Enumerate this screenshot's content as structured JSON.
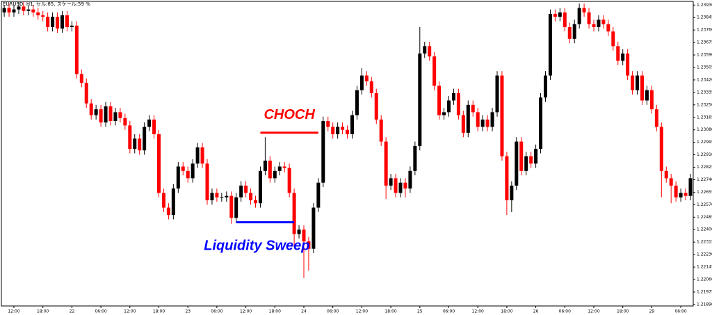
{
  "chart_data": {
    "type": "candlestick",
    "title": "EURUSD, H1, セル:85, スケール:59 %",
    "up_color": "#000000",
    "down_color": "#ff0000",
    "ylim": [
      1.2188,
      1.23955
    ],
    "yticks": [
      {
        "value": 1.2393,
        "label": "1.23930"
      },
      1.23845,
      {
        "value": 1.2376,
        "label": "1.23760"
      },
      1.23675,
      {
        "value": 1.2359,
        "label": "1.23590"
      },
      1.23505,
      {
        "value": 1.2342,
        "label": "1.23420"
      },
      1.23335,
      {
        "value": 1.2325,
        "label": "1.23250"
      },
      1.23165,
      {
        "value": 1.2308,
        "label": "1.23080"
      },
      1.22995,
      {
        "value": 1.2291,
        "label": "1.22910"
      },
      1.22825,
      {
        "value": 1.2274,
        "label": "1.22740"
      },
      1.22655,
      {
        "value": 1.2257,
        "label": "1.22570"
      },
      1.22485,
      {
        "value": 1.224,
        "label": "1.22400"
      },
      1.22315,
      {
        "value": 1.2223,
        "label": "1.22230"
      },
      1.22145,
      {
        "value": 1.2206,
        "label": "1.22060"
      },
      1.21975,
      {
        "value": 1.2189,
        "label": "1.21890"
      }
    ],
    "categories": [
      null,
      null,
      "12:00",
      null,
      null,
      null,
      null,
      null,
      "18:00",
      null,
      null,
      null,
      null,
      null,
      "22",
      null,
      null,
      null,
      null,
      null,
      "06:00",
      null,
      null,
      null,
      null,
      null,
      "12:00",
      null,
      null,
      null,
      null,
      null,
      "18:00",
      null,
      null,
      null,
      null,
      null,
      "23",
      null,
      null,
      null,
      null,
      null,
      "06:00",
      null,
      null,
      null,
      null,
      null,
      "12:00",
      null,
      null,
      null,
      null,
      null,
      "18:00",
      null,
      null,
      null,
      null,
      null,
      "24",
      null,
      null,
      null,
      null,
      null,
      "06:00",
      null,
      null,
      null,
      null,
      null,
      "12:00",
      null,
      null,
      null,
      null,
      null,
      "18:00",
      null,
      null,
      null,
      null,
      null,
      "25",
      null,
      null,
      null,
      null,
      null,
      "06:00",
      null,
      null,
      null,
      null,
      null,
      "12:00",
      null,
      null,
      null,
      null,
      null,
      "18:00",
      null,
      null,
      null,
      null,
      null,
      "26",
      null,
      null,
      null,
      null,
      null,
      "06:00",
      null,
      null,
      null,
      null,
      null,
      "12:00",
      null,
      null,
      null,
      null,
      null,
      "18:00",
      null,
      null,
      null,
      null,
      null,
      "29",
      null,
      null,
      null,
      null,
      null,
      "06:00",
      null,
      null
    ],
    "open": [
      1.2388,
      1.2391,
      1.2388,
      1.239,
      1.2392,
      1.2389,
      1.239,
      1.2388,
      1.2386,
      1.2385,
      1.2378,
      1.2385,
      1.2377,
      1.2386,
      1.2378,
      1.2379,
      1.2346,
      1.234,
      1.2326,
      1.2318,
      1.2322,
      1.2313,
      1.2324,
      1.2314,
      1.232,
      1.2316,
      1.2311,
      1.2295,
      1.2302,
      1.2294,
      1.231,
      1.2315,
      1.2305,
      1.2265,
      1.2255,
      1.225,
      1.2268,
      1.2283,
      1.228,
      1.2275,
      1.2285,
      1.2296,
      1.2285,
      1.226,
      1.2265,
      1.2262,
      1.2262,
      1.2263,
      1.2248,
      1.2262,
      1.227,
      1.2265,
      1.226,
      1.2258,
      1.228,
      1.2287,
      1.2275,
      1.228,
      1.2283,
      1.2282,
      1.2265,
      1.2237,
      1.224,
      1.2232,
      1.2227,
      1.2255,
      1.2272,
      1.2314,
      1.231,
      1.2305,
      1.231,
      1.2308,
      1.2305,
      1.2318,
      1.2335,
      1.2345,
      1.2341,
      1.2333,
      1.2315,
      1.23,
      1.227,
      1.2275,
      1.2265,
      1.2272,
      1.2268,
      1.228,
      1.2297,
      1.236,
      1.2365,
      1.2358,
      1.2338,
      1.2318,
      1.232,
      1.2328,
      1.2333,
      1.2318,
      1.2306,
      1.2325,
      1.232,
      1.231,
      1.2315,
      1.231,
      1.232,
      1.2345,
      1.229,
      1.226,
      1.227,
      1.23,
      1.228,
      1.229,
      1.2285,
      1.2295,
      1.233,
      1.2345,
      1.2387,
      1.2385,
      1.2388,
      1.2378,
      1.237,
      1.238,
      1.2391,
      1.2388,
      1.238,
      1.2378,
      1.2383,
      1.238,
      1.2375,
      1.2365,
      1.2355,
      1.236,
      1.2345,
      1.2335,
      1.2345,
      1.2328,
      1.2335,
      1.2322,
      1.231,
      1.228,
      1.2275,
      1.227,
      1.2262,
      1.2265,
      1.2263
    ],
    "high": [
      1.2393,
      1.2394,
      1.2393,
      1.2395,
      1.2395,
      1.2393,
      1.2393,
      1.2391,
      1.2389,
      1.2388,
      1.2388,
      1.2388,
      1.2389,
      1.2389,
      1.2382,
      1.2382,
      1.2349,
      1.2343,
      1.2329,
      1.2325,
      1.2325,
      1.2327,
      1.2327,
      1.2323,
      1.2323,
      1.2319,
      1.2314,
      1.2305,
      1.2305,
      1.2313,
      1.2318,
      1.2318,
      1.2308,
      1.2268,
      1.2258,
      1.2271,
      1.2286,
      1.2286,
      1.2283,
      1.2288,
      1.2299,
      1.2299,
      1.2288,
      1.2268,
      1.2268,
      1.2265,
      1.2266,
      1.2266,
      1.2265,
      1.2273,
      1.2273,
      1.2268,
      1.2263,
      1.2283,
      1.2303,
      1.229,
      1.2283,
      1.2286,
      1.2286,
      1.2285,
      1.2268,
      1.2243,
      1.2243,
      1.2235,
      1.2258,
      1.2275,
      1.2317,
      1.2317,
      1.2313,
      1.2313,
      1.2313,
      1.2311,
      1.2321,
      1.2338,
      1.235,
      1.2348,
      1.2344,
      1.2336,
      1.2318,
      1.2303,
      1.2278,
      1.2278,
      1.2275,
      1.2275,
      1.2283,
      1.23,
      1.2378,
      1.2368,
      1.2368,
      1.2361,
      1.2341,
      1.2323,
      1.2331,
      1.2336,
      1.2336,
      1.2321,
      1.2328,
      1.2328,
      1.2323,
      1.2318,
      1.2318,
      1.2323,
      1.2348,
      1.2348,
      1.2293,
      1.2273,
      1.2303,
      1.2303,
      1.2293,
      1.2293,
      1.2298,
      1.2333,
      1.2348,
      1.239,
      1.239,
      1.2391,
      1.2391,
      1.2381,
      1.2383,
      1.2394,
      1.2394,
      1.2391,
      1.2383,
      1.2386,
      1.2386,
      1.2383,
      1.2378,
      1.2368,
      1.2363,
      1.2363,
      1.2348,
      1.2348,
      1.2348,
      1.2338,
      1.2338,
      1.2325,
      1.2313,
      1.2283,
      1.2278,
      1.2273,
      1.2268,
      1.2268,
      1.2278
    ],
    "low": [
      1.2385,
      1.2385,
      1.2385,
      1.2387,
      1.2386,
      1.2386,
      1.2385,
      1.2383,
      1.2382,
      1.2375,
      1.2375,
      1.2374,
      1.2374,
      1.2375,
      1.2375,
      1.2343,
      1.2337,
      1.2323,
      1.2315,
      1.2315,
      1.231,
      1.231,
      1.2311,
      1.2311,
      1.2313,
      1.2308,
      1.2292,
      1.2292,
      1.2291,
      1.2291,
      1.2307,
      1.2302,
      1.2262,
      1.2252,
      1.2247,
      1.2247,
      1.2265,
      1.2277,
      1.2272,
      1.2272,
      1.2282,
      1.2282,
      1.2257,
      1.2257,
      1.2259,
      1.2259,
      1.2259,
      1.2244,
      1.2245,
      1.2259,
      1.2262,
      1.2257,
      1.2255,
      1.2255,
      1.2277,
      1.2272,
      1.2272,
      1.2277,
      1.2279,
      1.2262,
      1.2228,
      1.2234,
      1.2207,
      1.2212,
      1.2224,
      1.2252,
      1.2269,
      1.2307,
      1.2302,
      1.2302,
      1.2305,
      1.2302,
      1.2302,
      1.2315,
      1.2332,
      1.2338,
      1.233,
      1.2312,
      1.2297,
      1.2261,
      1.2267,
      1.2262,
      1.2262,
      1.2262,
      1.2265,
      1.2277,
      1.2294,
      1.2357,
      1.2355,
      1.2335,
      1.2315,
      1.2315,
      1.2317,
      1.2325,
      1.2315,
      1.2303,
      1.2303,
      1.2317,
      1.2307,
      1.2307,
      1.2307,
      1.2307,
      1.2317,
      1.2287,
      1.225,
      1.2252,
      1.2267,
      1.2277,
      1.2277,
      1.2282,
      1.2282,
      1.2292,
      1.2327,
      1.2342,
      1.2382,
      1.2382,
      1.2375,
      1.2367,
      1.2367,
      1.2377,
      1.2385,
      1.2377,
      1.2375,
      1.2375,
      1.2377,
      1.2372,
      1.2362,
      1.2352,
      1.2352,
      1.2342,
      1.2332,
      1.2332,
      1.2325,
      1.2325,
      1.2319,
      1.2307,
      1.2262,
      1.2272,
      1.2258,
      1.2259,
      1.2259,
      1.226,
      1.226
    ],
    "close": [
      1.2391,
      1.2388,
      1.239,
      1.2392,
      1.2389,
      1.239,
      1.2388,
      1.2386,
      1.2385,
      1.2378,
      1.2385,
      1.2377,
      1.2386,
      1.2378,
      1.2379,
      1.2346,
      1.234,
      1.2326,
      1.2318,
      1.2322,
      1.2313,
      1.2324,
      1.2314,
      1.232,
      1.2316,
      1.2311,
      1.2295,
      1.2302,
      1.2294,
      1.231,
      1.2315,
      1.2305,
      1.2265,
      1.2255,
      1.225,
      1.2268,
      1.2283,
      1.228,
      1.2275,
      1.2285,
      1.2296,
      1.2285,
      1.226,
      1.2265,
      1.2262,
      1.2262,
      1.2263,
      1.2248,
      1.2262,
      1.227,
      1.2265,
      1.226,
      1.2258,
      1.228,
      1.2287,
      1.2275,
      1.228,
      1.2283,
      1.2282,
      1.2265,
      1.2237,
      1.224,
      1.2232,
      1.2227,
      1.2255,
      1.2272,
      1.2314,
      1.231,
      1.2305,
      1.231,
      1.2308,
      1.2305,
      1.2318,
      1.2335,
      1.2345,
      1.2341,
      1.2333,
      1.2315,
      1.23,
      1.227,
      1.2275,
      1.2265,
      1.2272,
      1.2268,
      1.228,
      1.2297,
      1.236,
      1.2365,
      1.2358,
      1.2338,
      1.2318,
      1.232,
      1.2328,
      1.2333,
      1.2318,
      1.2306,
      1.2325,
      1.232,
      1.231,
      1.2315,
      1.231,
      1.232,
      1.2345,
      1.229,
      1.226,
      1.227,
      1.23,
      1.228,
      1.229,
      1.2285,
      1.2295,
      1.233,
      1.2345,
      1.2387,
      1.2385,
      1.2388,
      1.2378,
      1.237,
      1.238,
      1.2391,
      1.2388,
      1.238,
      1.2378,
      1.2383,
      1.238,
      1.2375,
      1.2365,
      1.2355,
      1.236,
      1.2345,
      1.2335,
      1.2345,
      1.2328,
      1.2335,
      1.2322,
      1.231,
      1.228,
      1.2275,
      1.227,
      1.2262,
      1.2265,
      1.2263,
      1.2275
    ],
    "annotations": [
      {
        "text": "CHOCH",
        "color": "#ff0000",
        "level": 1.2306,
        "x": [
          53,
          65
        ]
      },
      {
        "text": "Liquidity Sweep",
        "color": "#0000ff",
        "level": 1.2245,
        "x": [
          48,
          60
        ]
      }
    ]
  }
}
